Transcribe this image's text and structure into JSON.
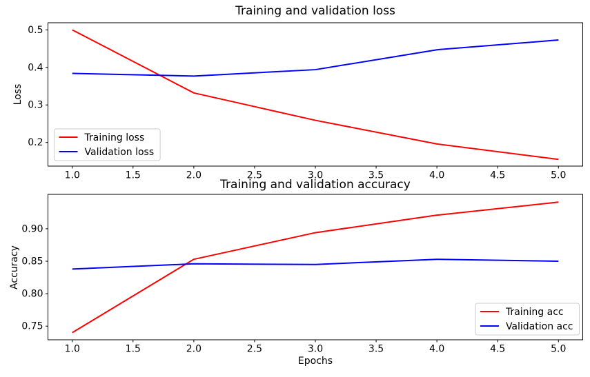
{
  "page": {
    "background": "#ffffff",
    "text_color": "#000000",
    "spine_color": "#000000",
    "legend_border_color": "#cccccc"
  },
  "chart_data": [
    {
      "type": "line",
      "title": "Training and validation loss",
      "xlabel": "",
      "ylabel": "Loss",
      "x": [
        1,
        2,
        3,
        4,
        5
      ],
      "xlim": [
        0.8,
        5.2
      ],
      "ylim": [
        0.137,
        0.519
      ],
      "x_ticks": [
        1.0,
        1.5,
        2.0,
        2.5,
        3.0,
        3.5,
        4.0,
        4.5,
        5.0
      ],
      "x_tick_labels": [
        "1.0",
        "1.5",
        "2.0",
        "2.5",
        "3.0",
        "3.5",
        "4.0",
        "4.5",
        "5.0"
      ],
      "y_ticks": [
        0.2,
        0.3,
        0.4,
        0.5
      ],
      "y_tick_labels": [
        "0.2",
        "0.3",
        "0.4",
        "0.5"
      ],
      "grid": false,
      "legend_loc": "lower-left",
      "series": [
        {
          "name": "Training loss",
          "color": "#ff0000",
          "values": [
            0.5,
            0.332,
            0.259,
            0.196,
            0.155
          ]
        },
        {
          "name": "Validation loss",
          "color": "#0000ff",
          "values": [
            0.384,
            0.377,
            0.394,
            0.447,
            0.473
          ]
        }
      ]
    },
    {
      "type": "line",
      "title": "Training and validation accuracy",
      "xlabel": "Epochs",
      "ylabel": "Accuracy",
      "x": [
        1,
        2,
        3,
        4,
        5
      ],
      "xlim": [
        0.8,
        5.2
      ],
      "ylim": [
        0.729,
        0.953
      ],
      "x_ticks": [
        1.0,
        1.5,
        2.0,
        2.5,
        3.0,
        3.5,
        4.0,
        4.5,
        5.0
      ],
      "x_tick_labels": [
        "1.0",
        "1.5",
        "2.0",
        "2.5",
        "3.0",
        "3.5",
        "4.0",
        "4.5",
        "5.0"
      ],
      "y_ticks": [
        0.75,
        0.8,
        0.85,
        0.9
      ],
      "y_tick_labels": [
        "0.75",
        "0.80",
        "0.85",
        "0.90"
      ],
      "grid": false,
      "legend_loc": "lower-right",
      "series": [
        {
          "name": "Training acc",
          "color": "#ff0000",
          "values": [
            0.74,
            0.853,
            0.894,
            0.921,
            0.941
          ]
        },
        {
          "name": "Validation acc",
          "color": "#0000ff",
          "values": [
            0.838,
            0.846,
            0.845,
            0.853,
            0.85
          ]
        }
      ]
    }
  ]
}
